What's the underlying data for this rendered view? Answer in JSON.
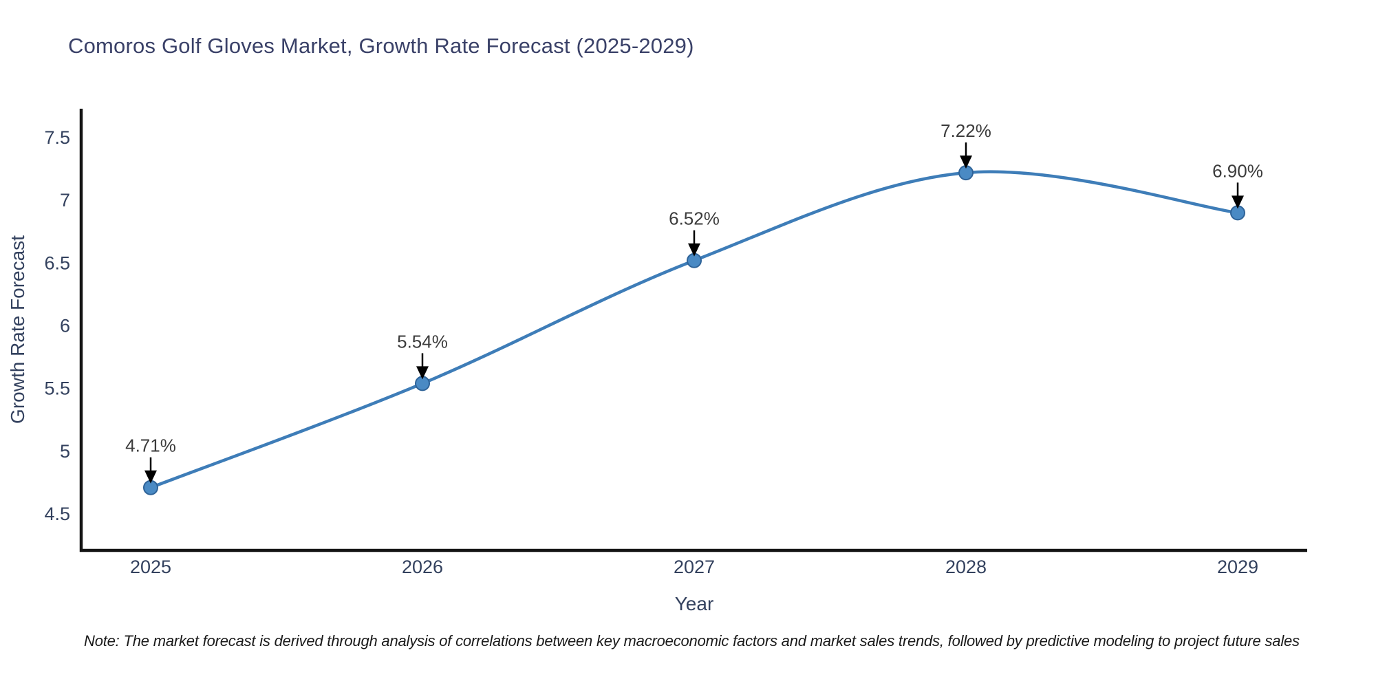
{
  "page": {
    "background": "#ffffff"
  },
  "chart_data": {
    "type": "line",
    "title": "Comoros Golf Gloves Market, Growth Rate Forecast (2025-2029)",
    "xlabel": "Year",
    "ylabel": "Growth Rate Forecast",
    "categories": [
      "2025",
      "2026",
      "2027",
      "2028",
      "2029"
    ],
    "series": [
      {
        "name": "Growth Rate Forecast",
        "values": [
          4.71,
          5.54,
          6.52,
          7.22,
          6.9
        ],
        "point_labels": [
          "4.71%",
          "5.54%",
          "6.52%",
          "7.22%",
          "6.90%"
        ]
      }
    ],
    "ytick_labels": [
      "7.5",
      "7",
      "6.5",
      "6",
      "5.5",
      "5",
      "4.5"
    ],
    "ytick_values": [
      7.5,
      7.0,
      6.5,
      6.0,
      5.5,
      5.0,
      4.5
    ],
    "ylim": [
      4.21,
      7.72
    ],
    "grid": false,
    "legend_position": "none",
    "curve": "smooth-spline",
    "annotation_style": "value-label-with-black-down-arrow",
    "colors": {
      "line": "#3e7db8",
      "marker_fill": "#4a8ac4",
      "marker_edge": "#2f6398",
      "axis": "#141414",
      "chart_text": "#33415e",
      "title_text": "#3a4168",
      "annotation_text": "#3c3c3c",
      "arrow": "#000000"
    }
  },
  "note": "Note: The market forecast is derived through analysis of correlations between key macroeconomic factors and market sales trends, followed by predictive modeling to project future sales"
}
